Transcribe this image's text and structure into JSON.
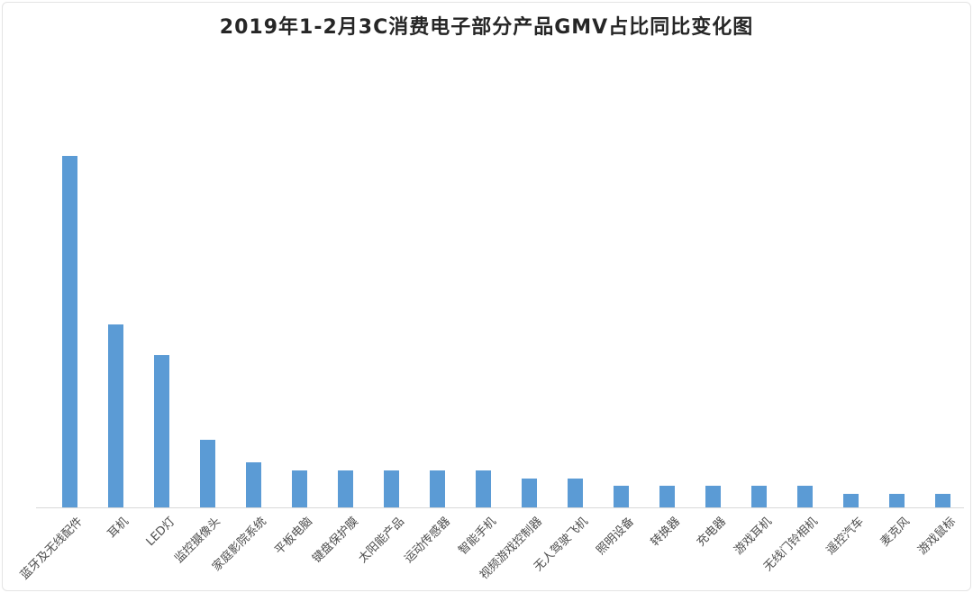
{
  "page": {
    "background": "#ffffff",
    "frame_border_color": "#e4e4e4"
  },
  "chart_data": {
    "type": "bar",
    "title": "2019年1-2月3C消费电子部分产品GMV占比同比变化图",
    "categories": [
      "蓝牙及无线配件",
      "耳机",
      "LED灯",
      "监控摄像头",
      "家庭影院系统",
      "平板电脑",
      "键盘保护膜",
      "太阳能产品",
      "运动传感器",
      "智能手机",
      "视频游戏控制器",
      "无人驾驶飞机",
      "照明设备",
      "转换器",
      "充电器",
      "游戏耳机",
      "无线门铃相机",
      "遥控汽车",
      "麦克风",
      "游戏鼠标"
    ],
    "values": [
      100,
      52,
      43.3,
      19.2,
      12.8,
      10.5,
      10.5,
      10.5,
      10.5,
      10.5,
      8.3,
      8.3,
      6.2,
      6.2,
      6.2,
      6.2,
      6.2,
      3.8,
      3.8,
      3.8
    ],
    "value_note": "relative units, tallest bar = 100 (no y-axis scale shown in chart)",
    "xlabel": "",
    "ylabel": "",
    "ylim": [
      0,
      105
    ],
    "grid": false,
    "legend": false,
    "y_axis_visible": false,
    "x_axis_line_visible": true,
    "x_label_rotation_deg": -45,
    "bar_color": "#5b9bd5",
    "axis_line_color": "#d9d9d9",
    "label_color": "#4d4d4d",
    "title_color": "#262626"
  }
}
